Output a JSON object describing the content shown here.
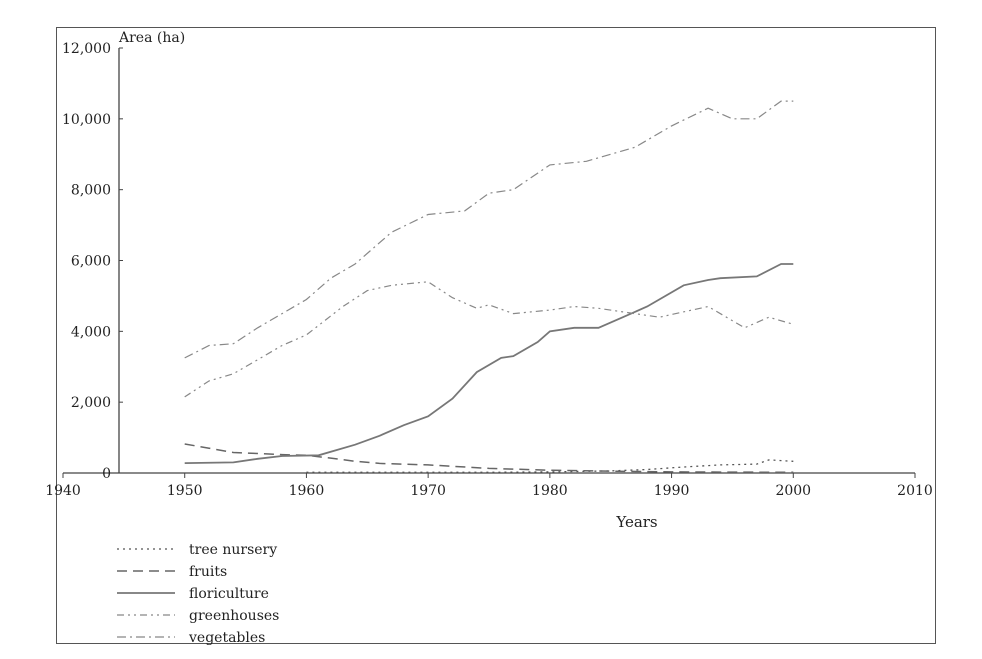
{
  "chart_data": {
    "type": "line",
    "title": "",
    "xlabel": "Years",
    "ylabel": "Area (ha)",
    "xlim": [
      1940,
      2010
    ],
    "ylim": [
      0,
      12000
    ],
    "x_ticks": [
      1940,
      1950,
      1960,
      1970,
      1980,
      1990,
      2000,
      2010
    ],
    "x_tick_labels": [
      "1940",
      "1950",
      "1960",
      "1970",
      "1980",
      "1990",
      "2000",
      "2010"
    ],
    "y_ticks": [
      0,
      2000,
      4000,
      6000,
      8000,
      10000,
      12000
    ],
    "y_tick_labels": [
      "0",
      "2,000",
      "4,000",
      "6,000",
      "8,000",
      "10,000",
      "12,000"
    ],
    "grid": false,
    "legend_position": "bottom-left",
    "colors": {
      "tree_nursery": "#555555",
      "fruits": "#666666",
      "floriculture": "#777777",
      "greenhouses": "#888888",
      "vegetables": "#888888",
      "axis": "#444444"
    },
    "series": [
      {
        "name": "tree nursery",
        "style": "dotted",
        "x": [
          1960,
          1965,
          1970,
          1975,
          1980,
          1985,
          1988,
          1991,
          1994,
          1997,
          1998,
          2000
        ],
        "y": [
          20,
          20,
          20,
          20,
          30,
          60,
          100,
          170,
          230,
          250,
          370,
          330
        ]
      },
      {
        "name": "fruits",
        "style": "dashed",
        "x": [
          1950,
          1952,
          1954,
          1956,
          1958,
          1960,
          1962,
          1964,
          1966,
          1970,
          1975,
          1980,
          1985,
          1990,
          1995,
          2000
        ],
        "y": [
          820,
          700,
          580,
          550,
          520,
          500,
          420,
          330,
          270,
          230,
          130,
          80,
          50,
          30,
          25,
          20
        ]
      },
      {
        "name": "floriculture",
        "style": "solid",
        "x": [
          1950,
          1954,
          1956,
          1958,
          1961,
          1964,
          1966,
          1968,
          1970,
          1972,
          1974,
          1976,
          1977,
          1979,
          1980,
          1982,
          1984,
          1986,
          1988,
          1991,
          1993,
          1994,
          1997,
          1999,
          2000
        ],
        "y": [
          280,
          300,
          400,
          480,
          500,
          800,
          1050,
          1350,
          1600,
          2100,
          2850,
          3250,
          3300,
          3700,
          4000,
          4100,
          4100,
          4400,
          4700,
          5300,
          5450,
          5500,
          5550,
          5900,
          5900
        ]
      },
      {
        "name": "greenhouses",
        "style": "dash-dot-dot",
        "x": [
          1950,
          1952,
          1954,
          1956,
          1958,
          1960,
          1963,
          1965,
          1967,
          1970,
          1972,
          1974,
          1975,
          1977,
          1980,
          1982,
          1984,
          1986,
          1989,
          1993,
          1996,
          1998,
          2000
        ],
        "y": [
          2150,
          2600,
          2800,
          3200,
          3600,
          3900,
          4700,
          5150,
          5300,
          5400,
          4950,
          4650,
          4750,
          4500,
          4600,
          4700,
          4650,
          4550,
          4400,
          4700,
          4100,
          4400,
          4200
        ]
      },
      {
        "name": "vegetables",
        "style": "dash-dot",
        "x": [
          1950,
          1952,
          1954,
          1956,
          1958,
          1960,
          1962,
          1964,
          1967,
          1970,
          1973,
          1975,
          1977,
          1980,
          1983,
          1987,
          1990,
          1993,
          1995,
          1997,
          1999,
          2000
        ],
        "y": [
          3250,
          3600,
          3650,
          4100,
          4500,
          4900,
          5500,
          5900,
          6800,
          7300,
          7400,
          7900,
          8000,
          8700,
          8800,
          9200,
          9800,
          10300,
          10000,
          10000,
          10500,
          10500
        ]
      }
    ]
  }
}
